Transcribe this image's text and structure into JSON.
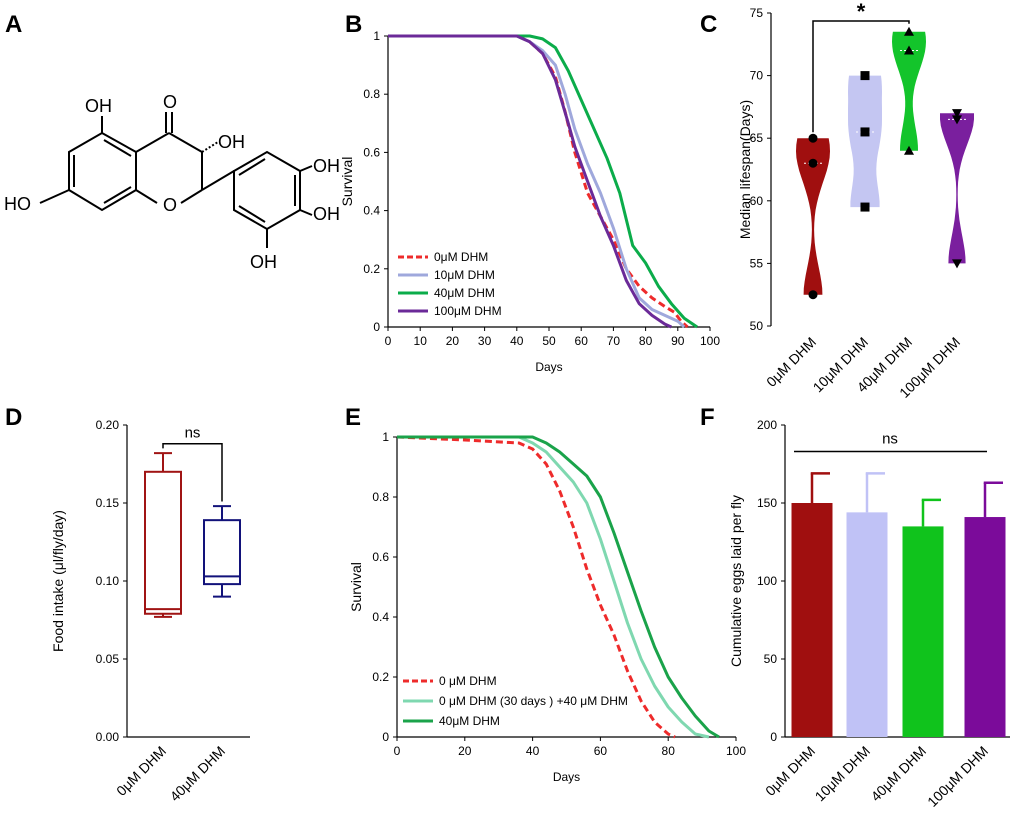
{
  "panel_labels": [
    "A",
    "B",
    "C",
    "D",
    "E",
    "F"
  ],
  "molecule": {
    "name": "Dihydromyricetin (DHM)",
    "labels": [
      "OH",
      "O",
      "OH",
      "HO",
      "O",
      "OH",
      "OH",
      "OH"
    ]
  },
  "chart_data": [
    {
      "panel": "B",
      "type": "line",
      "title": "",
      "xlabel": "Days",
      "ylabel": "Survival",
      "xlim": [
        0,
        100
      ],
      "ylim": [
        0,
        1
      ],
      "xticks": [
        0,
        10,
        20,
        30,
        40,
        50,
        60,
        70,
        80,
        90,
        100
      ],
      "yticks": [
        0,
        0.2,
        0.4,
        0.6,
        0.8,
        1
      ],
      "legend_position": "bottom-left",
      "series": [
        {
          "name": "0μM DHM",
          "color": "#ee2b2b",
          "dash": true,
          "x": [
            0,
            40,
            44,
            48,
            52,
            55,
            58,
            62,
            66,
            70,
            74,
            78,
            82,
            86,
            89,
            91,
            93
          ],
          "y": [
            1,
            1,
            0.98,
            0.94,
            0.86,
            0.74,
            0.6,
            0.46,
            0.38,
            0.3,
            0.2,
            0.14,
            0.1,
            0.07,
            0.05,
            0.02,
            0
          ]
        },
        {
          "name": "10μM DHM",
          "color": "#9fa8dc",
          "dash": false,
          "x": [
            0,
            40,
            44,
            48,
            52,
            55,
            58,
            62,
            66,
            70,
            74,
            78,
            82,
            86,
            90,
            92
          ],
          "y": [
            1,
            1,
            0.98,
            0.95,
            0.9,
            0.8,
            0.68,
            0.56,
            0.46,
            0.34,
            0.2,
            0.1,
            0.06,
            0.04,
            0.02,
            0
          ]
        },
        {
          "name": "40μM DHM",
          "color": "#0bac4a",
          "dash": false,
          "x": [
            0,
            44,
            48,
            52,
            56,
            60,
            64,
            68,
            72,
            76,
            80,
            84,
            88,
            92,
            96
          ],
          "y": [
            1,
            1,
            0.99,
            0.96,
            0.88,
            0.78,
            0.68,
            0.58,
            0.46,
            0.28,
            0.22,
            0.14,
            0.08,
            0.03,
            0
          ]
        },
        {
          "name": "100μM DHM",
          "color": "#6b2a98",
          "dash": false,
          "x": [
            0,
            40,
            44,
            48,
            52,
            56,
            58,
            62,
            66,
            70,
            74,
            78,
            82,
            86,
            88
          ],
          "y": [
            1,
            1,
            0.98,
            0.94,
            0.85,
            0.7,
            0.62,
            0.5,
            0.38,
            0.28,
            0.16,
            0.08,
            0.04,
            0.01,
            0
          ]
        }
      ]
    },
    {
      "panel": "C",
      "type": "violin",
      "xlabel": "",
      "ylabel": "Median lifespan(Days)",
      "ylim": [
        50,
        75
      ],
      "yticks": [
        50,
        55,
        60,
        65,
        70,
        75
      ],
      "categories": [
        "0μM DHM",
        "10μM DHM",
        "40μM DHM",
        "100μM DHM"
      ],
      "series": [
        {
          "name": "0μM DHM",
          "color": "#a00f0f",
          "marker": "circle",
          "values": [
            52.5,
            63,
            65
          ],
          "median": 63
        },
        {
          "name": "10μM DHM",
          "color": "#c4c6f2",
          "marker": "square",
          "values": [
            59.5,
            65.5,
            70
          ],
          "median": 65.5
        },
        {
          "name": "40μM DHM",
          "color": "#13c42b",
          "marker": "triangle-up",
          "values": [
            64,
            72,
            73.5
          ],
          "median": 72
        },
        {
          "name": "100μM DHM",
          "color": "#7a1f9e",
          "marker": "triangle-down",
          "values": [
            55,
            66.5,
            67
          ],
          "median": 66.5
        }
      ],
      "significance": {
        "from": "0μM DHM",
        "to": "40μM DHM",
        "label": "*"
      }
    },
    {
      "panel": "D",
      "type": "box",
      "xlabel": "",
      "ylabel": "Food intake (μl/fly/day)",
      "ylim": [
        0,
        0.2
      ],
      "yticks": [
        "0.00",
        "0.05",
        "0.10",
        "0.15",
        "0.20"
      ],
      "categories": [
        "0μM DHM",
        "40μM DHM"
      ],
      "series": [
        {
          "name": "0μM DHM",
          "color": "#a01414",
          "min": 0.077,
          "q1": 0.079,
          "median": 0.082,
          "q3": 0.17,
          "max": 0.182
        },
        {
          "name": "40μM DHM",
          "color": "#12127a",
          "min": 0.09,
          "q1": 0.098,
          "median": 0.103,
          "q3": 0.139,
          "max": 0.148
        }
      ],
      "significance": {
        "from": "0μM DHM",
        "to": "40μM DHM",
        "label": "ns"
      }
    },
    {
      "panel": "E",
      "type": "line",
      "xlabel": "Days",
      "ylabel": "Survival",
      "xlim": [
        0,
        100
      ],
      "ylim": [
        0,
        1
      ],
      "xticks": [
        0,
        20,
        40,
        60,
        80,
        100
      ],
      "yticks": [
        0,
        0.2,
        0.4,
        0.6,
        0.8,
        1
      ],
      "legend_position": "bottom-left",
      "series": [
        {
          "name": "0 μM DHM",
          "color": "#ee2b2b",
          "dash": true,
          "x": [
            0,
            20,
            36,
            40,
            44,
            48,
            52,
            56,
            60,
            64,
            68,
            72,
            76,
            80,
            82
          ],
          "y": [
            1,
            0.99,
            0.98,
            0.96,
            0.91,
            0.82,
            0.7,
            0.56,
            0.44,
            0.34,
            0.22,
            0.12,
            0.05,
            0.01,
            0
          ]
        },
        {
          "name": "0 μM DHM (30 days ) +40 μM DHM",
          "color": "#7fd8b0",
          "dash": false,
          "x": [
            0,
            36,
            40,
            44,
            48,
            52,
            56,
            60,
            64,
            68,
            72,
            76,
            80,
            84,
            88,
            92
          ],
          "y": [
            1,
            1,
            0.98,
            0.95,
            0.9,
            0.85,
            0.78,
            0.66,
            0.52,
            0.38,
            0.26,
            0.17,
            0.1,
            0.05,
            0.01,
            0
          ]
        },
        {
          "name": "40μM DHM",
          "color": "#1aa34a",
          "dash": false,
          "x": [
            0,
            40,
            44,
            48,
            52,
            56,
            60,
            64,
            68,
            72,
            76,
            80,
            84,
            88,
            92,
            95
          ],
          "y": [
            1,
            1,
            0.98,
            0.95,
            0.91,
            0.87,
            0.8,
            0.68,
            0.55,
            0.42,
            0.3,
            0.2,
            0.13,
            0.07,
            0.02,
            0
          ]
        }
      ]
    },
    {
      "panel": "F",
      "type": "bar",
      "xlabel": "",
      "ylabel": "Cumulative eggs laid per fly",
      "ylim": [
        0,
        200
      ],
      "yticks": [
        0,
        50,
        100,
        150,
        200
      ],
      "categories": [
        "0μM DHM",
        "10μM DHM",
        "40μM DHM",
        "100μM DHM"
      ],
      "values": [
        150,
        144,
        135,
        141
      ],
      "errors": [
        19,
        25,
        17,
        22
      ],
      "colors": [
        "#a00f0f",
        "#c0c2f6",
        "#10c31c",
        "#7b0b9a"
      ],
      "significance": {
        "from": "0μM DHM",
        "to": "100μM DHM",
        "label": "ns"
      }
    }
  ]
}
